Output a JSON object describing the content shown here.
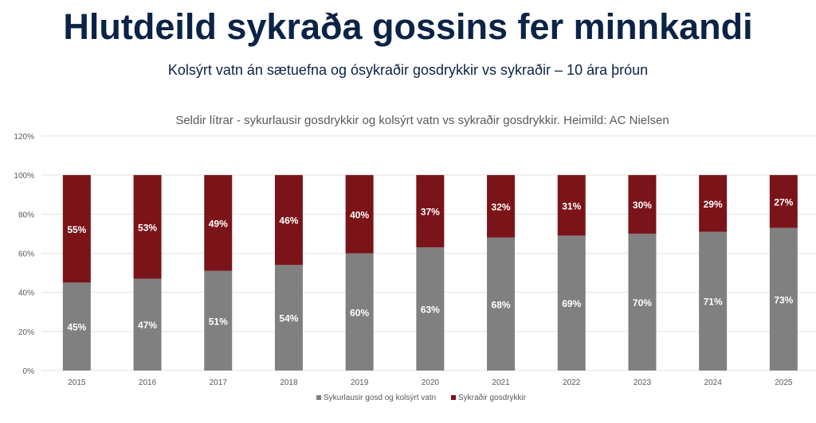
{
  "header": {
    "title": "Hlutdeild sykraða gossins fer minnkandi",
    "subtitle": "Kolsýrt vatn án sætuefna og ósykraðir gosdrykkir vs sykraðir – 10 ára þróun"
  },
  "chart_data": {
    "type": "bar",
    "stacked": true,
    "title": "Seldir lítrar - sykurlausir gosdrykkir og kolsýrt vatn vs sykraðir gosdrykkir. Heimild: AC Nielsen",
    "xlabel": "",
    "ylabel": "",
    "ylim": [
      0,
      120
    ],
    "yticks": [
      "0%",
      "20%",
      "40%",
      "60%",
      "80%",
      "100%",
      "120%"
    ],
    "grid": true,
    "legend_position": "bottom",
    "categories": [
      "2015",
      "2016",
      "2017",
      "2018",
      "2019",
      "2020",
      "2021",
      "2022",
      "2023",
      "2024",
      "2025"
    ],
    "series": [
      {
        "name": "Sykurlausir gosd og kolsýrt vatn",
        "color": "#808080",
        "values": [
          45,
          47,
          51,
          54,
          60,
          63,
          68,
          69,
          70,
          71,
          73
        ]
      },
      {
        "name": "Sykraðir gosdrykkir",
        "color": "#7a1419",
        "values": [
          55,
          53,
          49,
          46,
          40,
          37,
          32,
          31,
          30,
          29,
          27
        ]
      }
    ]
  }
}
